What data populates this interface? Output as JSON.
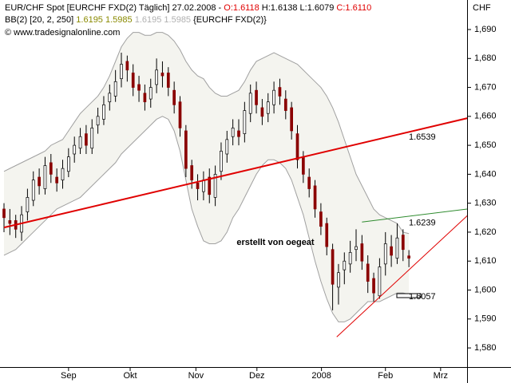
{
  "chart_data": {
    "type": "candlestick",
    "title": "EUR/CHF Spot [EURCHF FXD(2)  Täglich] 27.02.2008 -",
    "ohlc_labels": [
      "O:1.6118",
      "H:1.6138",
      "L:1.6079",
      "C:1.6110"
    ],
    "ohlc_label_colors": [
      "#e00000",
      "#000000",
      "#000000",
      "#e00000"
    ],
    "indicator": {
      "name": "BB(2) [20, 2, 250]",
      "values_text": "1.6195 1.5985",
      "values_text_2": "1.6195 1.5985",
      "source": "{EURCHF FXD(2)}"
    },
    "copyright": "© www.tradesignalonline.com",
    "y_axis_label": "CHF",
    "annotation": "erstellt von oegeat",
    "up_color": "#ffffff",
    "down_color": "#8b0000",
    "band_color": "#a0a0a0",
    "band_fill": "#f4f4ef",
    "ylim": [
      1.5734,
      1.7002
    ],
    "yticks": [
      {
        "value": 1.58,
        "label": "1,580"
      },
      {
        "value": 1.59,
        "label": "1,590"
      },
      {
        "value": 1.6,
        "label": "1,600"
      },
      {
        "value": 1.61,
        "label": "1,610"
      },
      {
        "value": 1.62,
        "label": "1,620"
      },
      {
        "value": 1.63,
        "label": "1,630"
      },
      {
        "value": 1.64,
        "label": "1,640"
      },
      {
        "value": 1.65,
        "label": "1,650"
      },
      {
        "value": 1.66,
        "label": "1,660"
      },
      {
        "value": 1.67,
        "label": "1,670"
      },
      {
        "value": 1.68,
        "label": "1,680"
      },
      {
        "value": 1.69,
        "label": "1,690"
      }
    ],
    "xticks": [
      {
        "value": 11,
        "label": "Sep"
      },
      {
        "value": 21.5,
        "label": "Okt"
      },
      {
        "value": 32.7,
        "label": "Nov"
      },
      {
        "value": 43.1,
        "label": "Dez"
      },
      {
        "value": 54.1,
        "label": "2008"
      },
      {
        "value": 65,
        "label": "Feb"
      },
      {
        "value": 74.4,
        "label": "Mrz"
      }
    ],
    "open": [
      1.628,
      1.624,
      1.624,
      1.62,
      1.627,
      1.631,
      1.639,
      1.635,
      1.644,
      1.639,
      1.638,
      1.641,
      1.647,
      1.649,
      1.654,
      1.649,
      1.657,
      1.659,
      1.665,
      1.667,
      1.673,
      1.679,
      1.675,
      1.671,
      1.668,
      1.666,
      1.671,
      1.675,
      1.675,
      1.669,
      1.665,
      1.655,
      1.643,
      1.637,
      1.634,
      1.639,
      1.632,
      1.641,
      1.647,
      1.653,
      1.655,
      1.654,
      1.661,
      1.669,
      1.663,
      1.661,
      1.664,
      1.67,
      1.666,
      1.663,
      1.654,
      1.646,
      1.639,
      1.636,
      1.627,
      1.623,
      1.614,
      1.601,
      1.607,
      1.609,
      1.614,
      1.616,
      1.609,
      1.604,
      1.598,
      1.609,
      1.615,
      1.611,
      1.619,
      1.6118
    ],
    "high": [
      1.63,
      1.628,
      1.626,
      1.629,
      1.635,
      1.641,
      1.642,
      1.646,
      1.647,
      1.642,
      1.645,
      1.649,
      1.653,
      1.656,
      1.657,
      1.659,
      1.663,
      1.667,
      1.671,
      1.676,
      1.682,
      1.681,
      1.678,
      1.674,
      1.671,
      1.673,
      1.68,
      1.679,
      1.677,
      1.672,
      1.667,
      1.657,
      1.645,
      1.64,
      1.641,
      1.642,
      1.643,
      1.651,
      1.655,
      1.659,
      1.659,
      1.665,
      1.671,
      1.672,
      1.666,
      1.668,
      1.672,
      1.673,
      1.669,
      1.665,
      1.657,
      1.648,
      1.642,
      1.638,
      1.63,
      1.625,
      1.616,
      1.609,
      1.613,
      1.617,
      1.621,
      1.619,
      1.612,
      1.606,
      1.611,
      1.62,
      1.619,
      1.623,
      1.621,
      1.6138
    ],
    "low": [
      1.62,
      1.619,
      1.618,
      1.617,
      1.624,
      1.629,
      1.633,
      1.633,
      1.637,
      1.634,
      1.635,
      1.639,
      1.644,
      1.647,
      1.647,
      1.647,
      1.654,
      1.657,
      1.662,
      1.665,
      1.67,
      1.672,
      1.667,
      1.665,
      1.662,
      1.663,
      1.668,
      1.67,
      1.667,
      1.661,
      1.653,
      1.639,
      1.635,
      1.631,
      1.631,
      1.63,
      1.629,
      1.638,
      1.644,
      1.65,
      1.65,
      1.651,
      1.658,
      1.661,
      1.657,
      1.658,
      1.661,
      1.664,
      1.659,
      1.652,
      1.642,
      1.637,
      1.632,
      1.625,
      1.619,
      1.612,
      1.593,
      1.595,
      1.602,
      1.606,
      1.61,
      1.607,
      1.599,
      1.596,
      1.597,
      1.605,
      1.608,
      1.609,
      1.61,
      1.6079
    ],
    "close": [
      1.625,
      1.623,
      1.621,
      1.626,
      1.632,
      1.638,
      1.636,
      1.643,
      1.64,
      1.637,
      1.642,
      1.646,
      1.65,
      1.653,
      1.65,
      1.656,
      1.66,
      1.664,
      1.668,
      1.672,
      1.678,
      1.676,
      1.67,
      1.669,
      1.665,
      1.67,
      1.676,
      1.674,
      1.67,
      1.664,
      1.656,
      1.642,
      1.638,
      1.635,
      1.638,
      1.633,
      1.64,
      1.648,
      1.652,
      1.656,
      1.653,
      1.662,
      1.668,
      1.664,
      1.66,
      1.665,
      1.669,
      1.667,
      1.662,
      1.655,
      1.645,
      1.64,
      1.635,
      1.628,
      1.622,
      1.615,
      1.602,
      1.606,
      1.61,
      1.613,
      1.615,
      1.61,
      1.603,
      1.599,
      1.608,
      1.616,
      1.612,
      1.618,
      1.614,
      1.611
    ],
    "bands": {
      "upper": [
        1.641,
        1.642,
        1.643,
        1.644,
        1.645,
        1.646,
        1.647,
        1.648,
        1.65,
        1.651,
        1.652,
        1.655,
        1.658,
        1.661,
        1.663,
        1.665,
        1.667,
        1.67,
        1.674,
        1.679,
        1.684,
        1.687,
        1.689,
        1.689,
        1.688,
        1.688,
        1.689,
        1.689,
        1.688,
        1.686,
        1.683,
        1.679,
        1.676,
        1.674,
        1.673,
        1.67,
        1.668,
        1.667,
        1.667,
        1.668,
        1.669,
        1.672,
        1.676,
        1.679,
        1.68,
        1.681,
        1.682,
        1.681,
        1.68,
        1.679,
        1.678,
        1.676,
        1.674,
        1.672,
        1.67,
        1.667,
        1.663,
        1.658,
        1.652,
        1.646,
        1.64,
        1.636,
        1.632,
        1.628,
        1.626,
        1.625,
        1.624,
        1.623,
        1.62,
        1.6195
      ],
      "lower": [
        1.612,
        1.613,
        1.614,
        1.616,
        1.618,
        1.62,
        1.622,
        1.624,
        1.626,
        1.628,
        1.629,
        1.63,
        1.631,
        1.632,
        1.634,
        1.636,
        1.638,
        1.64,
        1.642,
        1.644,
        1.647,
        1.649,
        1.651,
        1.653,
        1.655,
        1.657,
        1.659,
        1.66,
        1.659,
        1.655,
        1.648,
        1.638,
        1.628,
        1.622,
        1.617,
        1.616,
        1.616,
        1.617,
        1.62,
        1.625,
        1.628,
        1.632,
        1.636,
        1.64,
        1.643,
        1.645,
        1.645,
        1.644,
        1.642,
        1.638,
        1.632,
        1.626,
        1.618,
        1.61,
        1.603,
        1.597,
        1.592,
        1.589,
        1.589,
        1.59,
        1.592,
        1.594,
        1.596,
        1.596,
        1.596,
        1.597,
        1.598,
        1.599,
        1.599,
        1.5985
      ]
    },
    "trend_lines": [
      {
        "x": [
          0,
          79
        ],
        "values": [
          1.6216,
          1.6594
        ],
        "color": "#e00000",
        "width": 2,
        "label": "1.6539"
      },
      {
        "x": [
          61,
          79
        ],
        "values": [
          1.6235,
          1.628
        ],
        "color": "#2e8b2e",
        "width": 1,
        "label": "1.6239"
      },
      {
        "x": [
          56.7,
          79
        ],
        "values": [
          1.5838,
          1.6258
        ],
        "color": "#e00000",
        "width": 1,
        "label": "1.6057"
      }
    ]
  }
}
